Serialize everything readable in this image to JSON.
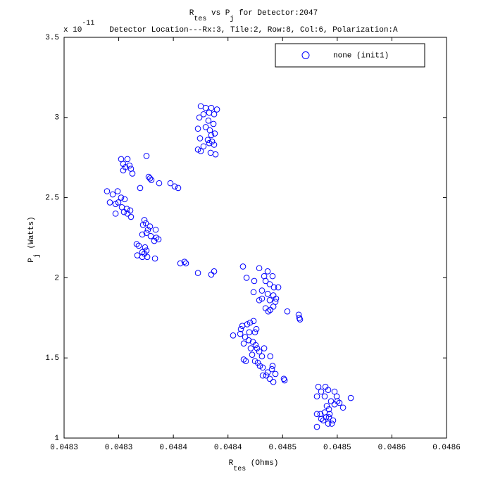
{
  "chart_data": {
    "type": "scatter",
    "title": [
      {
        "text": "R"
      },
      {
        "text": "tes",
        "shift": "sub"
      },
      {
        "text": " vs P"
      },
      {
        "text": "j",
        "shift": "sub"
      },
      {
        "text": " for Detector:2047"
      }
    ],
    "subtitle": "Detector Location---Rx:3, Tile:2, Row:8, Col:6, Polarization:A",
    "xlabel": [
      {
        "text": "R"
      },
      {
        "text": "tes",
        "shift": "sub"
      },
      {
        "text": " (Ohms)"
      }
    ],
    "ylabel": [
      {
        "text": "P"
      },
      {
        "text": "j",
        "shift": "sub"
      },
      {
        "text": " (Watts)"
      }
    ],
    "y_multiplier": [
      {
        "text": "x 10"
      },
      {
        "text": "-11",
        "shift": "super"
      }
    ],
    "xlim": [
      0.0483,
      0.04865
    ],
    "xticks": [
      {
        "value": 0.0483,
        "label": "0.0483"
      },
      {
        "value": 0.04835,
        "label": "0.0483"
      },
      {
        "value": 0.0484,
        "label": "0.0484"
      },
      {
        "value": 0.04845,
        "label": "0.0484"
      },
      {
        "value": 0.0485,
        "label": "0.0485"
      },
      {
        "value": 0.04855,
        "label": "0.0485"
      },
      {
        "value": 0.0486,
        "label": "0.0486"
      },
      {
        "value": 0.04865,
        "label": "0.0486"
      }
    ],
    "ylim": [
      1,
      3.5
    ],
    "yticks": [
      1,
      1.5,
      2,
      2.5,
      3,
      3.5
    ],
    "grid": false,
    "legend": "upper right",
    "series": [
      {
        "name": "none (init1)",
        "color": "#0000ff",
        "x": [
          0.0484251,
          0.0484296,
          0.0484347,
          0.0484399,
          0.0484276,
          0.0484328,
          0.0484373,
          0.0484238,
          0.0484321,
          0.0484367,
          0.0484225,
          0.0484334,
          0.0484379,
          0.0484244,
          0.0484315,
          0.0484354,
          0.0484276,
          0.0484328,
          0.0484373,
          0.0484225,
          0.0484251,
          0.0484341,
          0.0484386,
          0.0484347,
          0.0484296,
          0.0483522,
          0.0483541,
          0.0483561,
          0.048358,
          0.0483599,
          0.0483612,
          0.0483625,
          0.0483541,
          0.0483754,
          0.0483774,
          0.0483786,
          0.0483799,
          0.048387,
          0.0483973,
          0.0484012,
          0.0484044,
          0.0483696,
          0.0483393,
          0.0483445,
          0.048349,
          0.0483522,
          0.0483554,
          0.0483419,
          0.0483471,
          0.0483496,
          0.0483529,
          0.0483574,
          0.0483606,
          0.0483548,
          0.048358,
          0.0483471,
          0.0483612,
          0.0483735,
          0.0483748,
          0.0483722,
          0.0483767,
          0.0483786,
          0.0483838,
          0.0483716,
          0.0483754,
          0.0483793,
          0.0483844,
          0.0483864,
          0.0483825,
          0.0483664,
          0.0483683,
          0.0483741,
          0.0483754,
          0.0483716,
          0.0483735,
          0.048367,
          0.0483716,
          0.0483761,
          0.0483832,
          0.0484064,
          0.0484102,
          0.0484115,
          0.0484225,
          0.0484347,
          0.0484373,
          0.0484637,
          0.0484786,
          0.0484863,
          0.0484831,
          0.0484908,
          0.048467,
          0.048474,
          0.0484844,
          0.0484882,
          0.0484921,
          0.048496,
          0.0484734,
          0.0484811,
          0.0484863,
          0.0484915,
          0.048494,
          0.0484786,
          0.0484811,
          0.0484882,
          0.0484934,
          0.0484844,
          0.0484887,
          0.0484915,
          0.0484869,
          0.0485043,
          0.0485147,
          0.0485153,
          0.0485159,
          0.0484734,
          0.0484676,
          0.0484702,
          0.0484631,
          0.0484618,
          0.048476,
          0.0484747,
          0.0484547,
          0.0484612,
          0.0484695,
          0.0484657,
          0.0484689,
          0.0484644,
          0.0484728,
          0.0484753,
          0.0484766,
          0.0484708,
          0.0484786,
          0.0484831,
          0.0484721,
          0.0484811,
          0.0484887,
          0.0484747,
          0.0484773,
          0.0484644,
          0.0484663,
          0.0484792,
          0.0484818,
          0.0484908,
          0.0484863,
          0.0484934,
          0.048485,
          0.0484882,
          0.0484915,
          0.0484818,
          0.0485011,
          0.0485018,
          0.0484902,
          0.0485327,
          0.0485392,
          0.0485353,
          0.0485417,
          0.0485475,
          0.0485495,
          0.0485314,
          0.0485385,
          0.0485624,
          0.0485443,
          0.048552,
          0.0485475,
          0.0485404,
          0.0485553,
          0.0485424,
          0.0485385,
          0.0485346,
          0.0485353,
          0.0485314,
          0.0485372,
          0.0485462,
          0.048545,
          0.0485417,
          0.0485398,
          0.048543,
          0.0485314,
          0.0485501,
          0.0485424
        ],
        "values": [
          3.07,
          3.06,
          3.06,
          3.05,
          3.02,
          3.03,
          3.02,
          3.0,
          2.98,
          2.96,
          2.93,
          2.92,
          2.9,
          2.87,
          2.86,
          2.85,
          2.82,
          2.84,
          2.83,
          2.8,
          2.79,
          2.78,
          2.77,
          2.89,
          2.94,
          2.74,
          2.71,
          2.69,
          2.74,
          2.7,
          2.68,
          2.65,
          2.67,
          2.76,
          2.63,
          2.62,
          2.61,
          2.59,
          2.59,
          2.57,
          2.56,
          2.56,
          2.54,
          2.52,
          2.54,
          2.5,
          2.49,
          2.47,
          2.46,
          2.47,
          2.44,
          2.43,
          2.42,
          2.41,
          2.4,
          2.4,
          2.38,
          2.36,
          2.34,
          2.33,
          2.3,
          2.32,
          2.3,
          2.27,
          2.28,
          2.26,
          2.25,
          2.24,
          2.23,
          2.21,
          2.2,
          2.19,
          2.17,
          2.16,
          2.15,
          2.14,
          2.13,
          2.13,
          2.12,
          2.09,
          2.1,
          2.09,
          2.03,
          2.02,
          2.04,
          2.07,
          2.06,
          2.04,
          2.01,
          2.01,
          2.0,
          1.98,
          1.98,
          1.96,
          1.94,
          1.94,
          1.91,
          1.92,
          1.9,
          1.89,
          1.87,
          1.86,
          1.87,
          1.86,
          1.85,
          1.81,
          1.8,
          1.82,
          1.79,
          1.79,
          1.77,
          1.75,
          1.74,
          1.73,
          1.71,
          1.72,
          1.7,
          1.68,
          1.68,
          1.66,
          1.64,
          1.65,
          1.66,
          1.63,
          1.61,
          1.59,
          1.6,
          1.58,
          1.56,
          1.56,
          1.54,
          1.56,
          1.52,
          1.51,
          1.51,
          1.48,
          1.47,
          1.49,
          1.48,
          1.45,
          1.44,
          1.45,
          1.41,
          1.4,
          1.39,
          1.37,
          1.35,
          1.39,
          1.37,
          1.36,
          1.43,
          1.32,
          1.32,
          1.29,
          1.3,
          1.29,
          1.26,
          1.26,
          1.26,
          1.25,
          1.23,
          1.22,
          1.21,
          1.2,
          1.19,
          1.18,
          1.16,
          1.15,
          1.12,
          1.07,
          1.11,
          1.11,
          1.09,
          1.09,
          1.13,
          1.15,
          1.15,
          1.23,
          1.13
        ]
      }
    ]
  }
}
